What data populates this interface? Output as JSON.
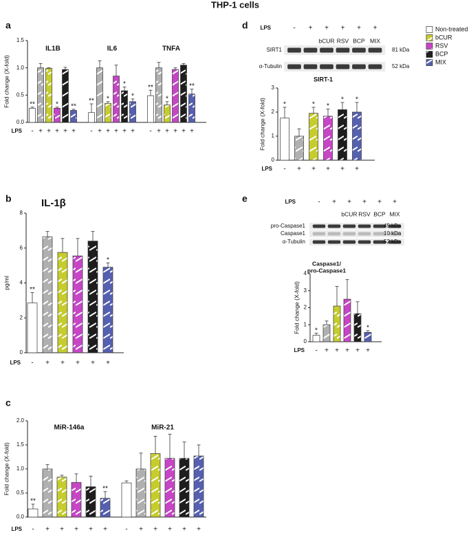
{
  "title": "THP-1 cells",
  "legend": [
    {
      "name": "Non-treated",
      "color": "#ffffff"
    },
    {
      "name": "bCUR",
      "color": "#c6cc2e"
    },
    {
      "name": "RSV",
      "color": "#c646c6"
    },
    {
      "name": "BCP",
      "color": "#1e1e1e"
    },
    {
      "name": "MIX",
      "color": "#5660b0"
    }
  ],
  "chart_data": [
    {
      "type": "bar",
      "panel": "a",
      "ylabel": "Fold change (X-fold)",
      "ylim": [
        0,
        1.5
      ],
      "yticks": [
        {
          "value": 0,
          "label": "0.0"
        },
        0.5,
        {
          "value": 1,
          "label": "1.0"
        },
        1.5
      ],
      "colors": [
        "#ffffff",
        "#b0b0b0",
        "#c6cc2e",
        "#c646c6",
        "#1e1e1e",
        "#5660b0"
      ],
      "lps_label": "LPS",
      "groups": [
        {
          "name": "IL1B",
          "values": [
            0.26,
            1.0,
            0.99,
            0.26,
            0.97,
            0.22
          ],
          "errors": [
            0.02,
            0.08,
            0.01,
            0.02,
            0.04,
            0.02
          ],
          "stars": [
            "**",
            null,
            null,
            "*",
            null,
            "**"
          ],
          "lps": [
            "-",
            "+",
            "+",
            "+",
            "+",
            "+"
          ]
        },
        {
          "name": "IL6",
          "values": [
            0.18,
            1.0,
            0.35,
            0.85,
            0.58,
            0.38
          ],
          "errors": [
            0.16,
            0.13,
            0.03,
            0.2,
            0.07,
            0.05
          ],
          "stars": [
            "**",
            null,
            "*",
            null,
            "*",
            "*"
          ],
          "lps": [
            "-",
            "+",
            "+",
            "+",
            "+",
            "+"
          ]
        },
        {
          "name": "TNFA",
          "values": [
            0.49,
            1.0,
            0.32,
            0.97,
            1.05,
            0.52
          ],
          "errors": [
            0.1,
            0.1,
            0.06,
            0.03,
            0.03,
            0.09
          ],
          "stars": [
            "**",
            null,
            "*",
            null,
            null,
            "**"
          ],
          "lps": [
            "-",
            "+",
            "+",
            "+",
            "+",
            "+"
          ]
        }
      ]
    },
    {
      "type": "bar",
      "panel": "b",
      "title": "IL-1β",
      "ylabel": "pg/ml",
      "ylim": [
        0,
        8
      ],
      "yticks": [
        0,
        2,
        4,
        6,
        8
      ],
      "colors": [
        "#ffffff",
        "#b0b0b0",
        "#c6cc2e",
        "#c646c6",
        "#1e1e1e",
        "#5660b0"
      ],
      "lps_label": "LPS",
      "groups": [
        {
          "values": [
            2.85,
            6.65,
            5.75,
            5.55,
            6.4,
            4.9
          ],
          "errors": [
            0.6,
            0.3,
            0.8,
            1.0,
            0.55,
            0.25
          ],
          "stars": [
            "**",
            null,
            null,
            null,
            null,
            "*"
          ],
          "lps": [
            "-",
            "+",
            "+",
            "+",
            "+",
            "+"
          ]
        }
      ]
    },
    {
      "type": "bar",
      "panel": "c",
      "ylabel": "Fold change (X-fold)",
      "ylim": [
        0,
        2
      ],
      "yticks": [
        {
          "value": 0,
          "label": "0.0"
        },
        0.5,
        {
          "value": 1,
          "label": "1.0"
        },
        1.5,
        {
          "value": 2,
          "label": "2.0"
        }
      ],
      "colors": [
        "#ffffff",
        "#b0b0b0",
        "#c6cc2e",
        "#c646c6",
        "#1e1e1e",
        "#5660b0"
      ],
      "lps_label": "LPS",
      "groups": [
        {
          "name": "MiR-146a",
          "values": [
            0.17,
            1.0,
            0.83,
            0.72,
            0.63,
            0.39
          ],
          "errors": [
            0.1,
            0.09,
            0.04,
            0.18,
            0.22,
            0.14
          ],
          "stars": [
            "**",
            null,
            null,
            null,
            null,
            "**"
          ],
          "lps": [
            "-",
            "+",
            "+",
            "+",
            "+",
            "+"
          ]
        },
        {
          "name": "MiR-21",
          "values": [
            0.71,
            1.0,
            1.32,
            1.22,
            1.22,
            1.27
          ],
          "errors": [
            0.04,
            0.33,
            0.36,
            0.5,
            0.34,
            0.23
          ],
          "stars": [
            null,
            null,
            null,
            null,
            null,
            null
          ],
          "lps": [
            "-",
            "+",
            "+",
            "+",
            "+",
            "+"
          ]
        }
      ]
    },
    {
      "type": "bar",
      "panel": "d",
      "title": "SIRT-1",
      "ylabel": "Fold change (X-fold)",
      "ylim": [
        0,
        3
      ],
      "yticks": [
        0,
        1,
        2,
        3
      ],
      "colors": [
        "#ffffff",
        "#b0b0b0",
        "#c6cc2e",
        "#c646c6",
        "#1e1e1e",
        "#5660b0"
      ],
      "lps_label": "LPS",
      "blot": {
        "lps_label": "LPS",
        "lps": [
          "-",
          "+",
          "+",
          "+",
          "+",
          "+"
        ],
        "treatments": [
          "bCUR",
          "RSV",
          "BCP",
          "MIX"
        ],
        "rows": [
          {
            "name": "SIRT1",
            "size": "81 kDa"
          },
          {
            "name": "α-Tubulin",
            "size": "52 kDa"
          }
        ]
      },
      "groups": [
        {
          "values": [
            1.75,
            1.0,
            1.95,
            1.83,
            2.1,
            2.0
          ],
          "errors": [
            0.45,
            0.3,
            0.25,
            0.3,
            0.3,
            0.4
          ],
          "stars": [
            "*",
            null,
            "*",
            "*",
            "*",
            "*"
          ],
          "lps": [
            "-",
            "+",
            "+",
            "+",
            "+",
            "+"
          ]
        }
      ]
    },
    {
      "type": "bar",
      "panel": "e",
      "title": [
        "Caspase1/",
        "pro-Caspase1"
      ],
      "ylabel": "Fold change (X-fold)",
      "ylim": [
        0,
        4
      ],
      "yticks": [
        0,
        1,
        2,
        3,
        4
      ],
      "colors": [
        "#ffffff",
        "#b0b0b0",
        "#c6cc2e",
        "#c646c6",
        "#1e1e1e",
        "#5660b0"
      ],
      "lps_label": "LPS",
      "blot": {
        "lps_label": "LPS",
        "lps": [
          "-",
          "+",
          "+",
          "+",
          "+",
          "+"
        ],
        "treatments": [
          "bCUR",
          "RSV",
          "BCP",
          "MIX"
        ],
        "rows": [
          {
            "name": "pro-Caspase1",
            "size": "45 kDa"
          },
          {
            "name": "Caspase1",
            "size": "10 kDa"
          },
          {
            "name": "α-Tubulin",
            "size": "52 kDa"
          }
        ]
      },
      "groups": [
        {
          "values": [
            0.38,
            1.0,
            2.1,
            2.5,
            1.65,
            0.55
          ],
          "errors": [
            0.12,
            0.22,
            1.15,
            1.15,
            0.7,
            0.1
          ],
          "stars": [
            "*",
            null,
            null,
            null,
            null,
            "*"
          ],
          "lps": [
            "-",
            "+",
            "+",
            "+",
            "+",
            "+"
          ]
        }
      ]
    }
  ]
}
